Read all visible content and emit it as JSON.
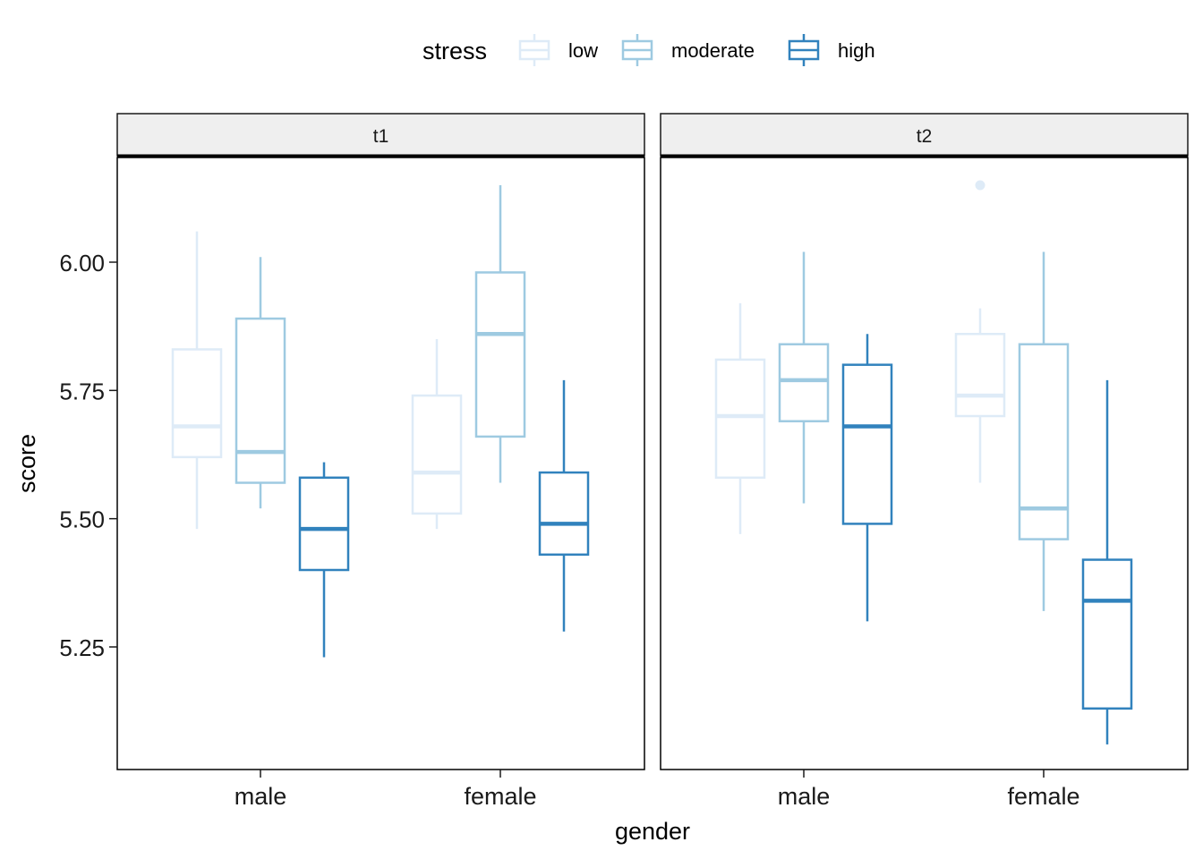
{
  "chart_data": {
    "type": "boxplot",
    "xlabel": "gender",
    "ylabel": "score",
    "ylim": [
      5.06,
      6.2
    ],
    "yticks": [
      5.25,
      5.5,
      5.75,
      6.0
    ],
    "ytick_labels": [
      "5.25",
      "5.50",
      "5.75",
      "6.00"
    ],
    "categories": [
      "male",
      "female"
    ],
    "grid": false,
    "legend": {
      "title": "stress",
      "position": "top",
      "items": [
        {
          "name": "low",
          "color": "#deebf7"
        },
        {
          "name": "moderate",
          "color": "#9ecae1"
        },
        {
          "name": "high",
          "color": "#3182bd"
        }
      ]
    },
    "facets": [
      {
        "label": "t1",
        "groups": [
          {
            "category": "male",
            "stress": "low",
            "lower_whisker": 5.48,
            "q1": 5.62,
            "median": 5.68,
            "q3": 5.83,
            "upper_whisker": 6.06,
            "outliers": []
          },
          {
            "category": "male",
            "stress": "moderate",
            "lower_whisker": 5.52,
            "q1": 5.57,
            "median": 5.63,
            "q3": 5.89,
            "upper_whisker": 6.01,
            "outliers": []
          },
          {
            "category": "male",
            "stress": "high",
            "lower_whisker": 5.23,
            "q1": 5.4,
            "median": 5.48,
            "q3": 5.58,
            "upper_whisker": 5.61,
            "outliers": []
          },
          {
            "category": "female",
            "stress": "low",
            "lower_whisker": 5.48,
            "q1": 5.51,
            "median": 5.59,
            "q3": 5.74,
            "upper_whisker": 5.85,
            "outliers": []
          },
          {
            "category": "female",
            "stress": "moderate",
            "lower_whisker": 5.57,
            "q1": 5.66,
            "median": 5.86,
            "q3": 5.98,
            "upper_whisker": 6.15,
            "outliers": []
          },
          {
            "category": "female",
            "stress": "high",
            "lower_whisker": 5.28,
            "q1": 5.43,
            "median": 5.49,
            "q3": 5.59,
            "upper_whisker": 5.77,
            "outliers": []
          }
        ]
      },
      {
        "label": "t2",
        "groups": [
          {
            "category": "male",
            "stress": "low",
            "lower_whisker": 5.47,
            "q1": 5.58,
            "median": 5.7,
            "q3": 5.81,
            "upper_whisker": 5.92,
            "outliers": []
          },
          {
            "category": "male",
            "stress": "moderate",
            "lower_whisker": 5.53,
            "q1": 5.69,
            "median": 5.77,
            "q3": 5.84,
            "upper_whisker": 6.02,
            "outliers": []
          },
          {
            "category": "male",
            "stress": "high",
            "lower_whisker": 5.3,
            "q1": 5.49,
            "median": 5.68,
            "q3": 5.8,
            "upper_whisker": 5.86,
            "outliers": []
          },
          {
            "category": "female",
            "stress": "low",
            "lower_whisker": 5.57,
            "q1": 5.7,
            "median": 5.74,
            "q3": 5.86,
            "upper_whisker": 5.91,
            "outliers": [
              6.15
            ]
          },
          {
            "category": "female",
            "stress": "moderate",
            "lower_whisker": 5.32,
            "q1": 5.46,
            "median": 5.52,
            "q3": 5.84,
            "upper_whisker": 6.02,
            "outliers": []
          },
          {
            "category": "female",
            "stress": "high",
            "lower_whisker": 5.06,
            "q1": 5.13,
            "median": 5.34,
            "q3": 5.42,
            "upper_whisker": 5.77,
            "outliers": []
          }
        ]
      }
    ]
  }
}
